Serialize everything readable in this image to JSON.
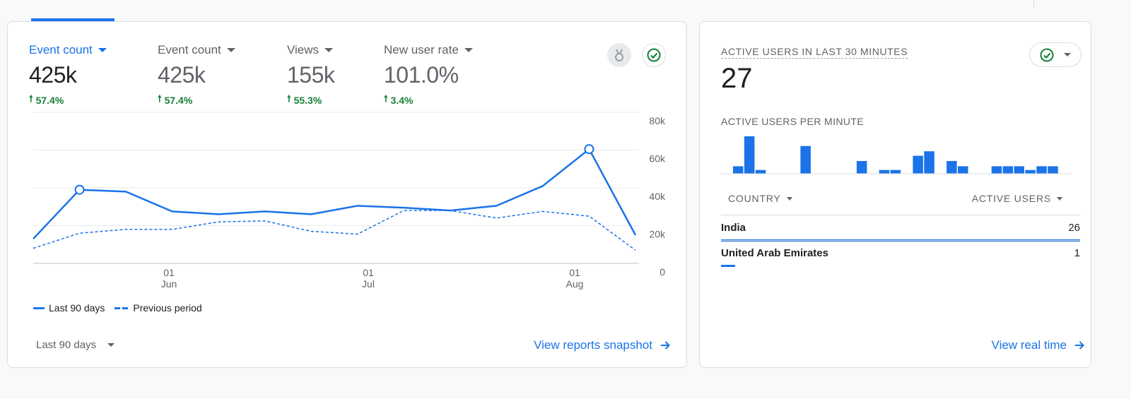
{
  "main_card": {
    "metrics": [
      {
        "label": "Event count",
        "value": "425k",
        "change": "57.4%",
        "active": true
      },
      {
        "label": "Event count",
        "value": "425k",
        "change": "57.4%",
        "active": false
      },
      {
        "label": "Views",
        "value": "155k",
        "change": "55.3%",
        "active": false
      },
      {
        "label": "New user rate",
        "value": "101.0%",
        "change": "3.4%",
        "active": false
      }
    ],
    "icons": {
      "insight": "medal-icon",
      "status": "check-circle-icon"
    },
    "legend": {
      "current": "Last 90 days",
      "previous": "Previous period"
    },
    "date_range": "Last 90 days",
    "snapshot_link": "View reports snapshot"
  },
  "chart_data": {
    "type": "line",
    "y_ticks": [
      "80k",
      "60k",
      "40k",
      "20k",
      "0"
    ],
    "ylim": [
      0,
      80000
    ],
    "x_ticks": [
      {
        "day": "01",
        "month": "Jun"
      },
      {
        "day": "01",
        "month": "Jul"
      },
      {
        "day": "01",
        "month": "Aug"
      }
    ],
    "series": [
      {
        "name": "Last 90 days",
        "style": "solid",
        "values": [
          13000,
          39000,
          38000,
          27500,
          26000,
          27500,
          26000,
          30500,
          29500,
          28000,
          30500,
          41000,
          60500,
          15000
        ]
      },
      {
        "name": "Previous period",
        "style": "dashed",
        "values": [
          8000,
          16000,
          18000,
          18000,
          22000,
          22500,
          17000,
          15500,
          28000,
          28000,
          24000,
          27500,
          25000,
          7000
        ]
      }
    ],
    "highlighted_points": [
      1,
      12
    ],
    "colors": {
      "line": "#1a73e8"
    }
  },
  "realtime_card": {
    "title": "ACTIVE USERS IN LAST 30 MINUTES",
    "value": "27",
    "per_minute_label": "ACTIVE USERS PER MINUTE",
    "per_minute": [
      1,
      5,
      0.5,
      0,
      0,
      0,
      3.7,
      0,
      0,
      0,
      0,
      1.7,
      0,
      0.5,
      0.5,
      0,
      2.4,
      3,
      0,
      1.7,
      1,
      0,
      0,
      1,
      1,
      1,
      0.5,
      1,
      1,
      0
    ],
    "columns": {
      "country": "COUNTRY",
      "active_users": "ACTIVE USERS"
    },
    "rows": [
      {
        "country": "India",
        "users": "26",
        "share": 1.0
      },
      {
        "country": "United Arab Emirates",
        "users": "1",
        "share": 0.04
      }
    ],
    "realtime_link": "View real time"
  }
}
